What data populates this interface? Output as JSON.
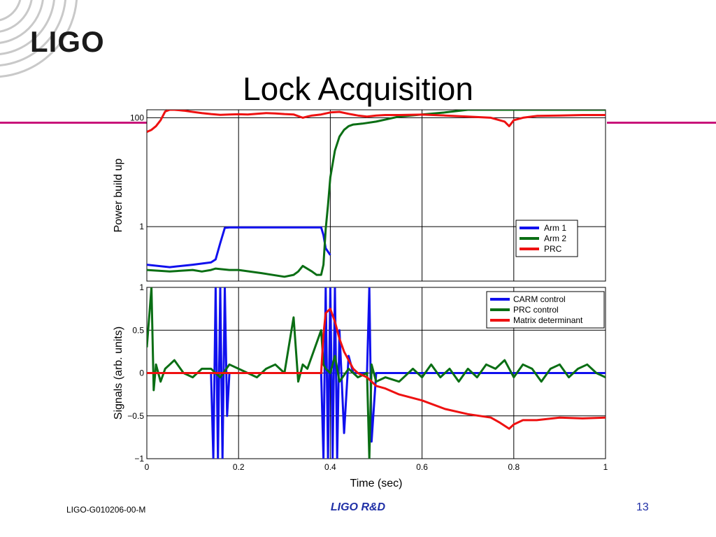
{
  "logo": {
    "text": "LIGO"
  },
  "slide": {
    "title": "Lock Acquisition"
  },
  "footer": {
    "doc_id": "LIGO-G010206-00-M",
    "center": "LIGO R&D",
    "page_number": "13"
  },
  "colors": {
    "blue": "#1010ee",
    "green": "#0a6e14",
    "red": "#ee1111",
    "accent_rule": "#c8147a",
    "footer_text": "#1f2fa6"
  },
  "chart_data": [
    {
      "type": "line",
      "ylabel": "Power build up",
      "yscale": "log",
      "xlim": [
        0,
        1
      ],
      "ylim": [
        0.1,
        140
      ],
      "yticks": [
        {
          "value": 1,
          "label": "1"
        },
        {
          "value": 100,
          "label": "100"
        }
      ],
      "xticks": [
        0,
        0.2,
        0.4,
        0.6,
        0.8,
        1
      ],
      "grid": true,
      "legend_position": "right",
      "series": [
        {
          "name": "Arm 1",
          "color": "#1010ee",
          "x": [
            0,
            0.05,
            0.1,
            0.14,
            0.15,
            0.16,
            0.17,
            0.18,
            0.19,
            0.2,
            0.25,
            0.3,
            0.35,
            0.38,
            0.385,
            0.39,
            0.4
          ],
          "y": [
            0.2,
            0.18,
            0.2,
            0.22,
            0.25,
            0.5,
            0.95,
            0.97,
            0.97,
            0.97,
            0.97,
            0.97,
            0.97,
            0.97,
            0.7,
            0.4,
            0.3
          ]
        },
        {
          "name": "Arm 2",
          "color": "#0a6e14",
          "x": [
            0,
            0.05,
            0.1,
            0.12,
            0.14,
            0.15,
            0.18,
            0.2,
            0.25,
            0.3,
            0.32,
            0.33,
            0.34,
            0.36,
            0.37,
            0.38,
            0.385,
            0.39,
            0.395,
            0.4,
            0.41,
            0.42,
            0.43,
            0.44,
            0.45,
            0.47,
            0.5,
            0.55,
            0.6,
            0.65,
            0.7,
            0.75,
            0.8,
            0.85,
            0.9,
            0.95,
            1
          ],
          "y": [
            0.16,
            0.15,
            0.16,
            0.15,
            0.16,
            0.17,
            0.16,
            0.16,
            0.14,
            0.12,
            0.13,
            0.15,
            0.19,
            0.15,
            0.13,
            0.13,
            0.2,
            0.9,
            2.5,
            8,
            25,
            45,
            60,
            70,
            75,
            78,
            85,
            105,
            115,
            125,
            140,
            150,
            150,
            148,
            147,
            145,
            145
          ]
        },
        {
          "name": "PRC",
          "color": "#ee1111",
          "x": [
            0,
            0.01,
            0.02,
            0.03,
            0.04,
            0.05,
            0.06,
            0.08,
            0.1,
            0.12,
            0.14,
            0.16,
            0.18,
            0.2,
            0.22,
            0.24,
            0.26,
            0.28,
            0.3,
            0.32,
            0.34,
            0.35,
            0.36,
            0.38,
            0.4,
            0.42,
            0.44,
            0.46,
            0.48,
            0.5,
            0.52,
            0.55,
            0.6,
            0.65,
            0.7,
            0.75,
            0.78,
            0.79,
            0.8,
            0.82,
            0.85,
            0.9,
            0.95,
            1
          ],
          "y": [
            55,
            60,
            70,
            90,
            130,
            145,
            140,
            135,
            128,
            122,
            117,
            113,
            115,
            116,
            115,
            118,
            122,
            120,
            117,
            115,
            100,
            105,
            110,
            115,
            125,
            128,
            118,
            110,
            105,
            110,
            112,
            112,
            114,
            110,
            105,
            100,
            85,
            70,
            90,
            100,
            108,
            110,
            112,
            112
          ]
        }
      ]
    },
    {
      "type": "line",
      "xlabel": "Time (sec)",
      "ylabel": "Signals (arb. units)",
      "xlim": [
        0,
        1
      ],
      "ylim": [
        -1,
        1
      ],
      "yticks": [
        {
          "value": -1,
          "label": "−1"
        },
        {
          "value": -0.5,
          "label": "−0.5"
        },
        {
          "value": 0,
          "label": "0"
        },
        {
          "value": 0.5,
          "label": "0.5"
        },
        {
          "value": 1,
          "label": "1"
        }
      ],
      "xticks": [
        0,
        0.2,
        0.4,
        0.6,
        0.8,
        1
      ],
      "grid": true,
      "legend_position": "top-right",
      "series": [
        {
          "name": "CARM control",
          "color": "#1010ee",
          "x": [
            0,
            0.1,
            0.14,
            0.145,
            0.15,
            0.155,
            0.16,
            0.165,
            0.17,
            0.175,
            0.18,
            0.2,
            0.3,
            0.35,
            0.38,
            0.385,
            0.39,
            0.395,
            0.4,
            0.405,
            0.41,
            0.415,
            0.42,
            0.43,
            0.44,
            0.45,
            0.48,
            0.485,
            0.49,
            0.5,
            0.6,
            0.7,
            0.8,
            0.9,
            1
          ],
          "y": [
            0,
            0,
            0,
            -1,
            1,
            -1,
            1,
            -1,
            1,
            -0.5,
            0,
            0,
            0,
            0,
            0,
            -1,
            1,
            -1,
            1,
            -1,
            1,
            -1,
            0.5,
            -0.7,
            0.2,
            0,
            0,
            1,
            -0.8,
            0,
            0,
            0,
            0,
            0,
            0
          ]
        },
        {
          "name": "PRC control",
          "color": "#0a6e14",
          "x": [
            0,
            0.01,
            0.015,
            0.02,
            0.03,
            0.04,
            0.05,
            0.06,
            0.08,
            0.1,
            0.12,
            0.14,
            0.16,
            0.18,
            0.2,
            0.22,
            0.24,
            0.26,
            0.28,
            0.3,
            0.32,
            0.33,
            0.34,
            0.35,
            0.36,
            0.38,
            0.385,
            0.39,
            0.4,
            0.41,
            0.42,
            0.44,
            0.46,
            0.48,
            0.485,
            0.49,
            0.5,
            0.52,
            0.55,
            0.58,
            0.6,
            0.62,
            0.64,
            0.66,
            0.68,
            0.7,
            0.72,
            0.74,
            0.76,
            0.78,
            0.8,
            0.82,
            0.84,
            0.86,
            0.88,
            0.9,
            0.92,
            0.94,
            0.96,
            0.98,
            1
          ],
          "y": [
            0.3,
            1,
            -0.2,
            0.1,
            -0.1,
            0.05,
            0.1,
            0.15,
            0,
            -0.05,
            0.05,
            0.05,
            -0.05,
            0.1,
            0.05,
            0.0,
            -0.05,
            0.05,
            0.1,
            0,
            0.65,
            -0.1,
            0.1,
            0.05,
            0.2,
            0.5,
            0.1,
            0.05,
            0,
            0.2,
            -0.1,
            0.05,
            -0.05,
            0,
            -1,
            0.1,
            -0.1,
            -0.05,
            -0.1,
            0.05,
            -0.05,
            0.1,
            -0.05,
            0.05,
            -0.1,
            0.05,
            -0.05,
            0.1,
            0.05,
            0.15,
            -0.05,
            0.1,
            0.05,
            -0.1,
            0.05,
            0.1,
            -0.05,
            0.05,
            0.1,
            0,
            -0.05
          ]
        },
        {
          "name": "Matrix determinant",
          "color": "#ee1111",
          "x": [
            0,
            0.05,
            0.1,
            0.2,
            0.3,
            0.38,
            0.385,
            0.39,
            0.4,
            0.41,
            0.42,
            0.43,
            0.44,
            0.45,
            0.46,
            0.48,
            0.5,
            0.52,
            0.55,
            0.6,
            0.65,
            0.7,
            0.75,
            0.77,
            0.79,
            0.8,
            0.82,
            0.85,
            0.9,
            0.95,
            1
          ],
          "y": [
            0,
            0,
            0,
            0,
            0,
            0,
            0.45,
            0.7,
            0.75,
            0.6,
            0.4,
            0.25,
            0.15,
            0.05,
            0.0,
            -0.05,
            -0.15,
            -0.18,
            -0.25,
            -0.32,
            -0.42,
            -0.48,
            -0.52,
            -0.58,
            -0.65,
            -0.6,
            -0.55,
            -0.55,
            -0.52,
            -0.53,
            -0.52
          ]
        }
      ]
    }
  ]
}
